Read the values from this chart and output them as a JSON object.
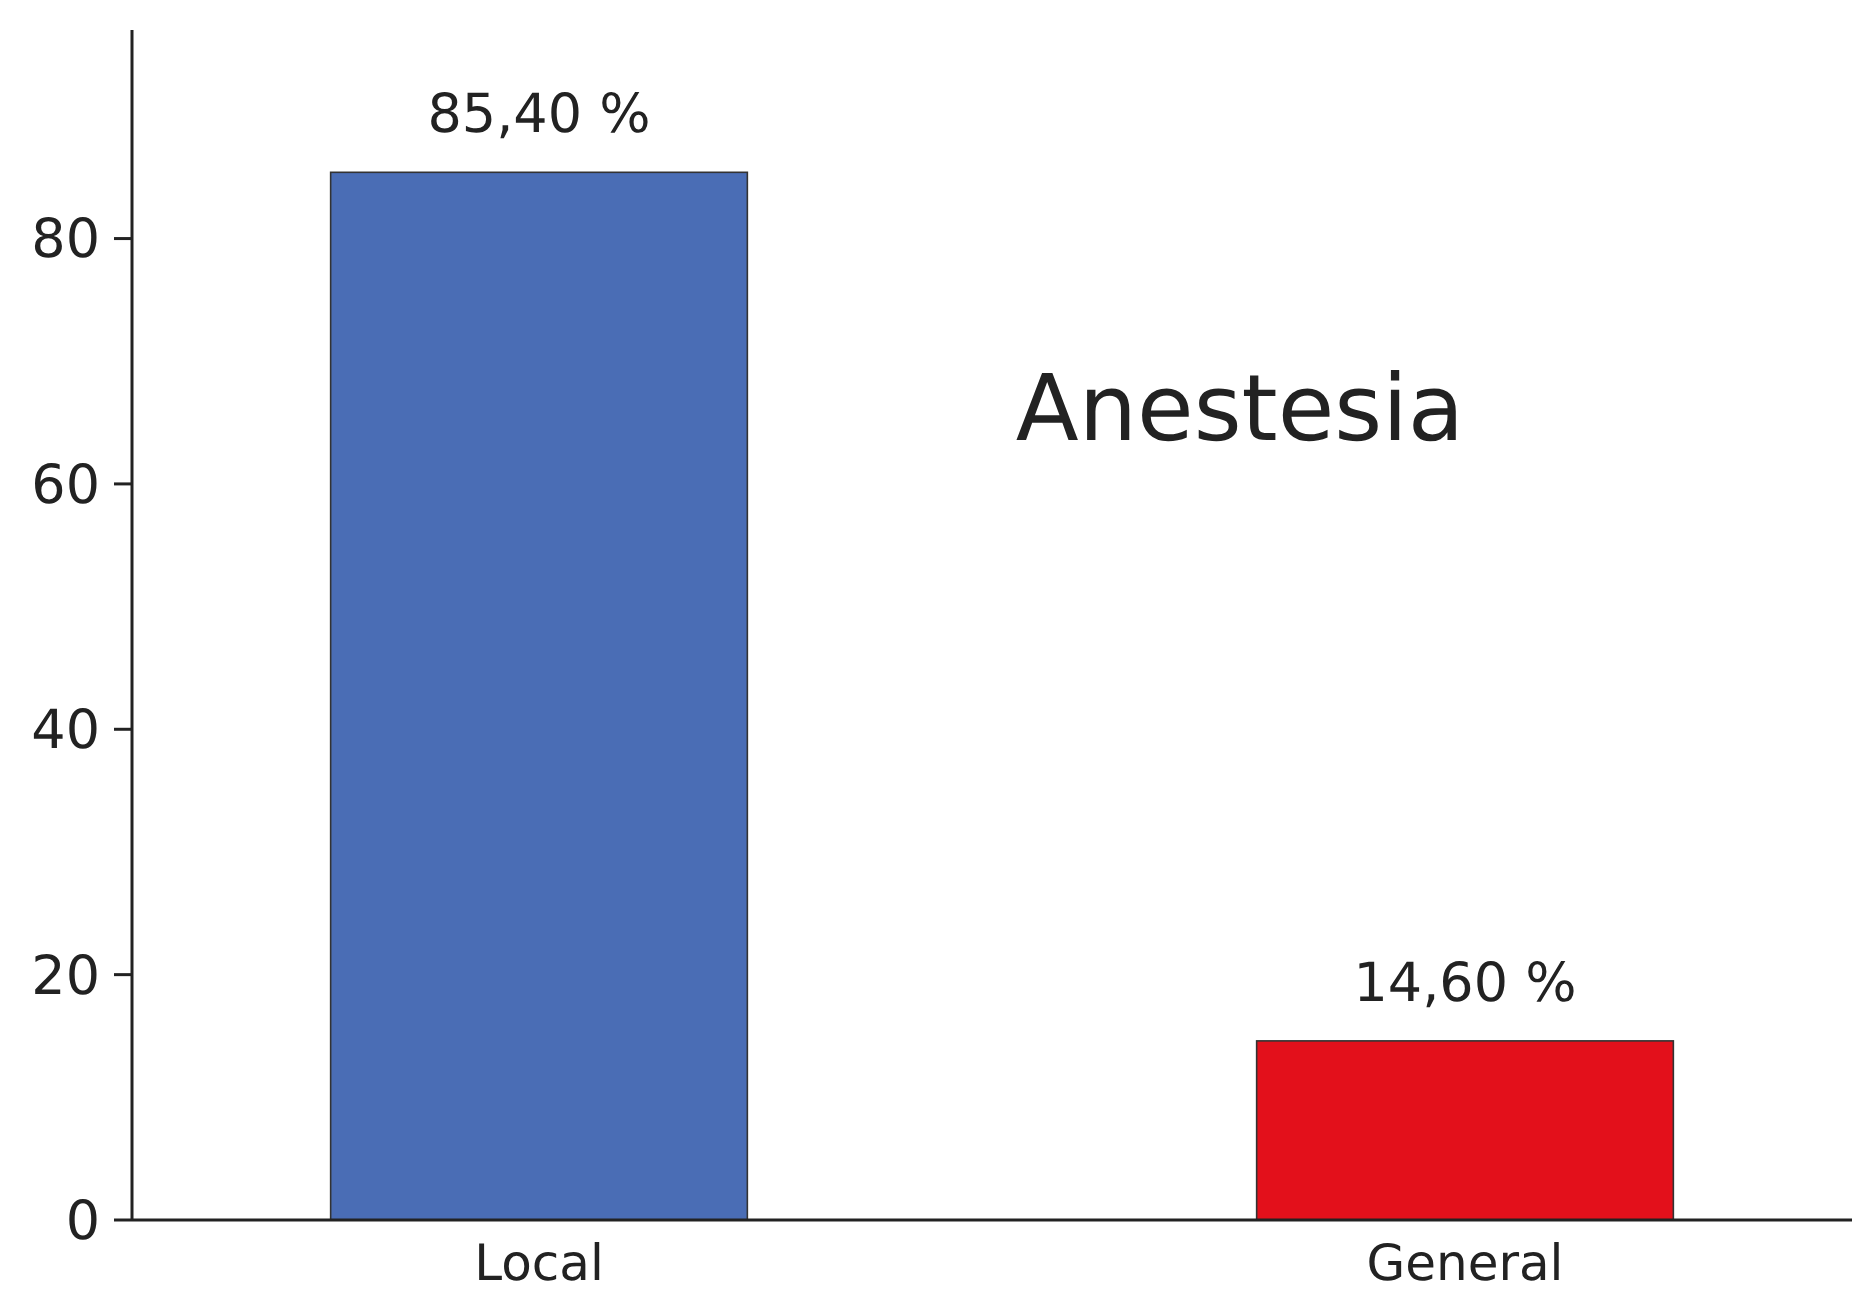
{
  "chart_data": {
    "type": "bar",
    "title": "Anestesia",
    "categories": [
      "Local",
      "General"
    ],
    "values": [
      85.4,
      14.6
    ],
    "colors": [
      "#4a6db5",
      "#e3101b"
    ],
    "value_labels": [
      "85,40 %",
      "14,60 %"
    ],
    "ylim": [
      0,
      97
    ],
    "yticks": [
      0,
      20,
      40,
      60,
      80
    ]
  }
}
